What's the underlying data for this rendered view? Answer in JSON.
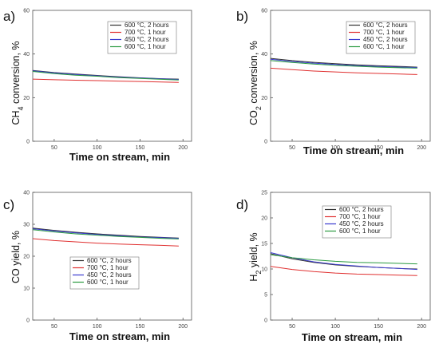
{
  "chart_data": [
    {
      "type": "line",
      "panel_label": "a)",
      "xlabel": "Time on stream, min",
      "ylabel_parts": [
        "CH",
        "4",
        " conversion, %"
      ],
      "xlim": [
        25,
        210
      ],
      "ylim": [
        0,
        60
      ],
      "xticks": [
        50,
        100,
        150,
        200
      ],
      "yticks": [
        0,
        20,
        40,
        60
      ],
      "legend_position": "top-right",
      "series": [
        {
          "name": "600 °C, 2 hours",
          "color": "#333333",
          "x": [
            25,
            50,
            75,
            100,
            125,
            150,
            175,
            195
          ],
          "y": [
            32.5,
            31.5,
            30.8,
            30.2,
            29.6,
            29.1,
            28.7,
            28.5
          ]
        },
        {
          "name": "700 °C, 1 hour",
          "color": "#e03030",
          "x": [
            25,
            50,
            75,
            100,
            125,
            150,
            175,
            195
          ],
          "y": [
            28.5,
            28.2,
            28.0,
            27.8,
            27.6,
            27.4,
            27.2,
            27.0
          ]
        },
        {
          "name": "450 °C, 2 hours",
          "color": "#3a3ad0",
          "x": [
            25,
            50,
            75,
            100,
            125,
            150,
            175,
            195
          ],
          "y": [
            32.3,
            31.3,
            30.6,
            30.0,
            29.4,
            29.0,
            28.6,
            28.3
          ]
        },
        {
          "name": "600 °C, 1 hour",
          "color": "#2a9a40",
          "x": [
            25,
            50,
            75,
            100,
            125,
            150,
            175,
            195
          ],
          "y": [
            32.0,
            31.0,
            30.3,
            29.8,
            29.2,
            28.8,
            28.4,
            28.1
          ]
        }
      ]
    },
    {
      "type": "line",
      "panel_label": "b)",
      "xlabel": "Time on stream, min",
      "ylabel_parts": [
        "CO",
        "2",
        " conversion, %"
      ],
      "xlim": [
        25,
        210
      ],
      "ylim": [
        0,
        60
      ],
      "xticks": [
        50,
        100,
        150,
        200
      ],
      "yticks": [
        0,
        20,
        40,
        60
      ],
      "legend_position": "top-right",
      "series": [
        {
          "name": "600 °C, 2 hours",
          "color": "#333333",
          "x": [
            25,
            50,
            75,
            100,
            125,
            150,
            175,
            195
          ],
          "y": [
            38.0,
            37.0,
            36.2,
            35.6,
            35.0,
            34.6,
            34.3,
            34.0
          ]
        },
        {
          "name": "700 °C, 1 hour",
          "color": "#e03030",
          "x": [
            25,
            50,
            75,
            100,
            125,
            150,
            175,
            195
          ],
          "y": [
            33.5,
            32.8,
            32.2,
            31.8,
            31.4,
            31.1,
            30.8,
            30.6
          ]
        },
        {
          "name": "450 °C, 2 hours",
          "color": "#3a3ad0",
          "x": [
            25,
            50,
            75,
            100,
            125,
            150,
            175,
            195
          ],
          "y": [
            37.6,
            36.6,
            35.8,
            35.2,
            34.7,
            34.3,
            34.0,
            33.8
          ]
        },
        {
          "name": "600 °C, 1 hour",
          "color": "#2a9a40",
          "x": [
            25,
            50,
            75,
            100,
            125,
            150,
            175,
            195
          ],
          "y": [
            37.0,
            36.1,
            35.4,
            34.8,
            34.4,
            34.0,
            33.7,
            33.5
          ]
        }
      ]
    },
    {
      "type": "line",
      "panel_label": "c)",
      "xlabel": "Time on stream, min",
      "ylabel_parts": [
        "CO yield, %"
      ],
      "xlim": [
        25,
        210
      ],
      "ylim": [
        0,
        40
      ],
      "xticks": [
        50,
        100,
        150,
        200
      ],
      "yticks": [
        0,
        10,
        20,
        30,
        40
      ],
      "legend_position": "bottom-right",
      "series": [
        {
          "name": "600 °C, 2 hours",
          "color": "#333333",
          "x": [
            25,
            50,
            75,
            100,
            125,
            150,
            175,
            195
          ],
          "y": [
            28.8,
            28.1,
            27.5,
            27.0,
            26.6,
            26.2,
            25.9,
            25.7
          ]
        },
        {
          "name": "700 °C, 1 hour",
          "color": "#e03030",
          "x": [
            25,
            50,
            75,
            100,
            125,
            150,
            175,
            195
          ],
          "y": [
            25.5,
            24.9,
            24.5,
            24.1,
            23.8,
            23.6,
            23.4,
            23.2
          ]
        },
        {
          "name": "450 °C, 2 hours",
          "color": "#3a3ad0",
          "x": [
            25,
            50,
            75,
            100,
            125,
            150,
            175,
            195
          ],
          "y": [
            28.6,
            27.9,
            27.3,
            26.8,
            26.4,
            26.0,
            25.8,
            25.6
          ]
        },
        {
          "name": "600 °C, 1 hour",
          "color": "#2a9a40",
          "x": [
            25,
            50,
            75,
            100,
            125,
            150,
            175,
            195
          ],
          "y": [
            28.3,
            27.6,
            27.0,
            26.6,
            26.2,
            25.9,
            25.6,
            25.4
          ]
        }
      ]
    },
    {
      "type": "line",
      "panel_label": "d)",
      "xlabel": "Time on stream, min",
      "ylabel_parts": [
        "H",
        "2",
        " yield, %"
      ],
      "xlim": [
        25,
        210
      ],
      "ylim": [
        0,
        25
      ],
      "xticks": [
        50,
        100,
        150,
        200
      ],
      "yticks": [
        0,
        5,
        10,
        15,
        20,
        25
      ],
      "legend_position": "top-right",
      "series": [
        {
          "name": "600 °C, 2 hours",
          "color": "#333333",
          "x": [
            25,
            50,
            75,
            100,
            125,
            150,
            175,
            195
          ],
          "y": [
            13.0,
            12.0,
            11.3,
            10.8,
            10.5,
            10.3,
            10.1,
            10.0
          ]
        },
        {
          "name": "700 °C, 1 hour",
          "color": "#e03030",
          "x": [
            25,
            50,
            75,
            100,
            125,
            150,
            175,
            195
          ],
          "y": [
            10.5,
            9.9,
            9.5,
            9.2,
            9.0,
            8.9,
            8.8,
            8.7
          ]
        },
        {
          "name": "450 °C, 2 hours",
          "color": "#3a3ad0",
          "x": [
            25,
            50,
            75,
            100,
            125,
            150,
            175,
            195
          ],
          "y": [
            13.2,
            12.2,
            11.4,
            10.9,
            10.6,
            10.3,
            10.1,
            9.9
          ]
        },
        {
          "name": "600 °C, 1 hour",
          "color": "#2a9a40",
          "x": [
            25,
            50,
            75,
            100,
            125,
            150,
            175,
            195
          ],
          "y": [
            12.8,
            12.2,
            11.8,
            11.5,
            11.3,
            11.2,
            11.1,
            11.0
          ]
        }
      ]
    }
  ]
}
